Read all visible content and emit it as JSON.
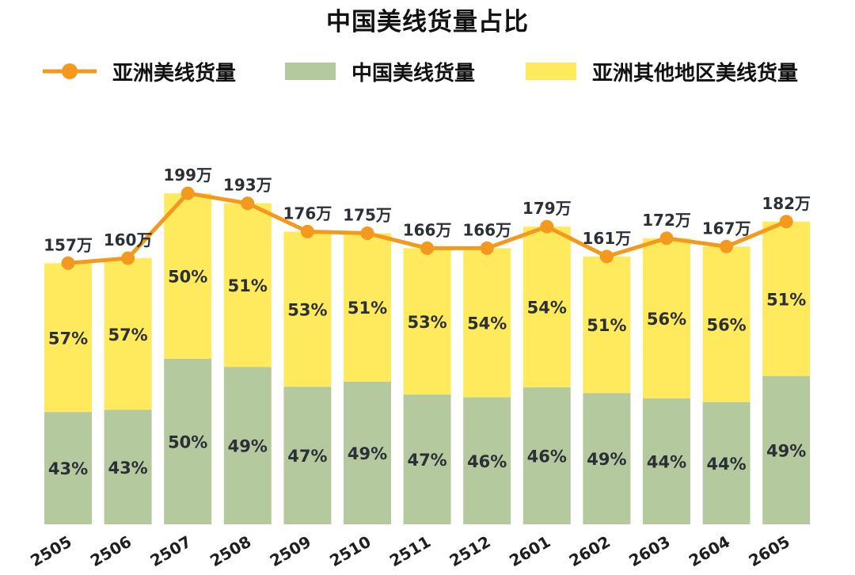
{
  "chart_data": {
    "type": "bar",
    "title": "中国美线货量占比",
    "categories": [
      "2505",
      "2506",
      "2507",
      "2508",
      "2509",
      "2510",
      "2511",
      "2512",
      "2601",
      "2602",
      "2603",
      "2604",
      "2605"
    ],
    "series": [
      {
        "name": "中国美线货量",
        "type": "bar",
        "stack": "share",
        "values": [
          43,
          43,
          50,
          49,
          47,
          49,
          47,
          46,
          46,
          49,
          44,
          44,
          49
        ],
        "labels": [
          "43%",
          "43%",
          "50%",
          "49%",
          "47%",
          "49%",
          "47%",
          "46%",
          "46%",
          "49%",
          "44%",
          "44%",
          "49%"
        ]
      },
      {
        "name": "亚洲其他地区美线货量",
        "type": "bar",
        "stack": "share",
        "values": [
          57,
          57,
          50,
          51,
          53,
          51,
          53,
          54,
          54,
          51,
          56,
          56,
          51
        ],
        "labels": [
          "57%",
          "57%",
          "50%",
          "51%",
          "53%",
          "51%",
          "53%",
          "54%",
          "54%",
          "51%",
          "56%",
          "56%",
          "51%"
        ]
      },
      {
        "name": "亚洲美线货量",
        "type": "line",
        "values": [
          157,
          160,
          199,
          193,
          176,
          175,
          166,
          166,
          179,
          161,
          172,
          167,
          182
        ],
        "labels": [
          "157万",
          "160万",
          "199万",
          "193万",
          "176万",
          "175万",
          "166万",
          "166万",
          "179万",
          "161万",
          "172万",
          "167万",
          "182万"
        ]
      }
    ],
    "legend_position": "top",
    "grid": false,
    "colors": {
      "china": "#b5c99f",
      "other_asia": "#ffe95c",
      "line": "#f39a1e",
      "text": "#2b2f36"
    }
  }
}
